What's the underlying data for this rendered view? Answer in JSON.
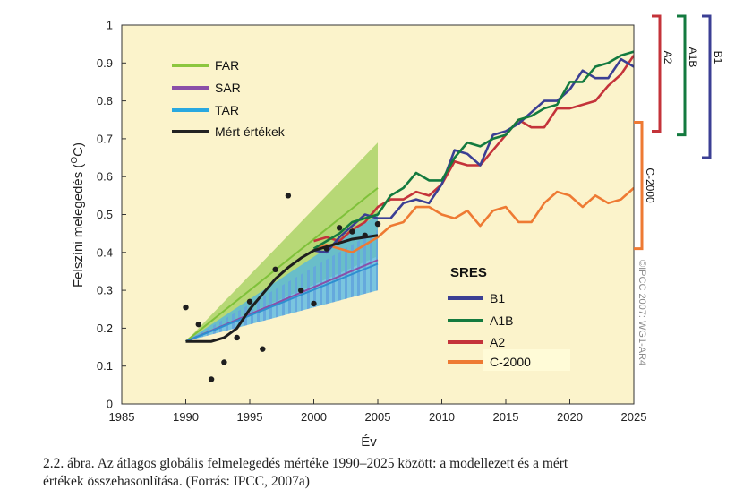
{
  "chart_data": {
    "type": "line",
    "ylabel": "Felszíni melegedés (°C)",
    "ylabel_main": "Felszíni melegedés (",
    "ylabel_unit_sup": "O",
    "ylabel_unit": "C)",
    "xlabel": "Év",
    "xlim": [
      1985,
      2025
    ],
    "ylim": [
      0,
      1
    ],
    "xticks": [
      1985,
      1990,
      1995,
      2000,
      2005,
      2010,
      2015,
      2020,
      2025
    ],
    "yticks": [
      0,
      0.1,
      0.2,
      0.3,
      0.4,
      0.5,
      0.6,
      0.7,
      0.8,
      0.9,
      1
    ],
    "ytick_labels": [
      "0",
      "0.1",
      "0.2",
      "0.3",
      "0.4",
      "0.5",
      "0.6",
      "0.7",
      "0.8",
      "0.9",
      "1"
    ],
    "assessment_legend": [
      {
        "label": "FAR",
        "color": "#8cc63f"
      },
      {
        "label": "SAR",
        "color": "#8a4fa8"
      },
      {
        "label": "TAR",
        "color": "#29a8e0"
      },
      {
        "label": "Mért értékek",
        "color": "#222222"
      }
    ],
    "sres_title": "SRES",
    "sres_legend": [
      {
        "label": "B1",
        "color": "#3b3f94"
      },
      {
        "label": "A1B",
        "color": "#137a3f"
      },
      {
        "label": "A2",
        "color": "#c4333a"
      },
      {
        "label": "C-2000",
        "color": "#ee7a33"
      }
    ],
    "assessment_ranges": [
      {
        "name": "FAR",
        "color": "#a6d160",
        "x": [
          1990,
          2005
        ],
        "low": [
          0.165,
          0.39
        ],
        "high": [
          0.165,
          0.69
        ],
        "central": [
          0.165,
          0.57
        ]
      },
      {
        "name": "SAR",
        "color": "#a47ec0",
        "x": [
          1990,
          2005
        ],
        "low": [
          0.165,
          0.3
        ],
        "high": [
          0.165,
          0.46
        ],
        "central": [
          0.165,
          0.38
        ]
      },
      {
        "name": "TAR",
        "color": "#4fb6e6",
        "x": [
          1990,
          2005
        ],
        "low": [
          0.165,
          0.3
        ],
        "high": [
          0.165,
          0.5
        ],
        "central": [
          0.165,
          0.37
        ]
      }
    ],
    "observed_smoothed": {
      "x": [
        1990,
        1992,
        1993,
        1994,
        1995,
        1996,
        1997,
        1998,
        1999,
        2000,
        2001,
        2002,
        2003,
        2004,
        2005
      ],
      "y": [
        0.165,
        0.165,
        0.175,
        0.2,
        0.25,
        0.29,
        0.33,
        0.36,
        0.385,
        0.405,
        0.415,
        0.425,
        0.435,
        0.44,
        0.445
      ]
    },
    "observed_points": {
      "x": [
        1990,
        1991,
        1992,
        1993,
        1994,
        1995,
        1996,
        1997,
        1998,
        1999,
        2000,
        2001,
        2002,
        2003,
        2004,
        2005
      ],
      "y": [
        0.255,
        0.21,
        0.065,
        0.11,
        0.175,
        0.27,
        0.145,
        0.355,
        0.55,
        0.3,
        0.265,
        0.41,
        0.465,
        0.455,
        0.445,
        0.475
      ]
    },
    "series": [
      {
        "name": "A2",
        "color": "#c4333a",
        "x": [
          2000,
          2001,
          2002,
          2003,
          2004,
          2005,
          2006,
          2007,
          2008,
          2009,
          2010,
          2011,
          2012,
          2013,
          2014,
          2015,
          2016,
          2017,
          2018,
          2019,
          2020,
          2021,
          2022,
          2023,
          2024,
          2025
        ],
        "values": [
          0.43,
          0.44,
          0.43,
          0.46,
          0.48,
          0.52,
          0.54,
          0.54,
          0.56,
          0.55,
          0.58,
          0.64,
          0.63,
          0.63,
          0.67,
          0.71,
          0.75,
          0.73,
          0.73,
          0.78,
          0.78,
          0.79,
          0.8,
          0.84,
          0.87,
          0.92
        ]
      },
      {
        "name": "B1",
        "color": "#3b3f94",
        "x": [
          2000,
          2001,
          2002,
          2003,
          2004,
          2005,
          2006,
          2007,
          2008,
          2009,
          2010,
          2011,
          2012,
          2013,
          2014,
          2015,
          2016,
          2017,
          2018,
          2019,
          2020,
          2021,
          2022,
          2023,
          2024,
          2025
        ],
        "values": [
          0.405,
          0.4,
          0.44,
          0.47,
          0.5,
          0.49,
          0.49,
          0.53,
          0.54,
          0.53,
          0.58,
          0.67,
          0.66,
          0.63,
          0.71,
          0.72,
          0.74,
          0.77,
          0.8,
          0.8,
          0.83,
          0.88,
          0.86,
          0.86,
          0.91,
          0.89
        ]
      },
      {
        "name": "A1B",
        "color": "#137a3f",
        "x": [
          2000,
          2001,
          2002,
          2003,
          2004,
          2005,
          2006,
          2007,
          2008,
          2009,
          2010,
          2011,
          2012,
          2013,
          2014,
          2015,
          2016,
          2017,
          2018,
          2019,
          2020,
          2021,
          2022,
          2023,
          2024,
          2025
        ],
        "values": [
          0.41,
          0.43,
          0.45,
          0.48,
          0.49,
          0.5,
          0.55,
          0.57,
          0.61,
          0.59,
          0.59,
          0.65,
          0.69,
          0.68,
          0.7,
          0.71,
          0.75,
          0.76,
          0.78,
          0.79,
          0.85,
          0.85,
          0.89,
          0.9,
          0.92,
          0.93
        ]
      },
      {
        "name": "C-2000",
        "color": "#ee7a33",
        "x": [
          2000,
          2001,
          2002,
          2003,
          2004,
          2005,
          2006,
          2007,
          2008,
          2009,
          2010,
          2011,
          2012,
          2013,
          2014,
          2015,
          2016,
          2017,
          2018,
          2019,
          2020,
          2021,
          2022,
          2023,
          2024,
          2025
        ],
        "values": [
          0.41,
          0.42,
          0.41,
          0.4,
          0.42,
          0.44,
          0.47,
          0.48,
          0.52,
          0.52,
          0.5,
          0.49,
          0.51,
          0.47,
          0.51,
          0.52,
          0.48,
          0.48,
          0.53,
          0.56,
          0.55,
          0.52,
          0.55,
          0.53,
          0.54,
          0.57
        ]
      }
    ],
    "range_brackets": [
      {
        "label": "A2",
        "color": "#c4333a",
        "range": [
          0.72,
          1.0
        ]
      },
      {
        "label": "A1B",
        "color": "#137a3f",
        "range": [
          0.71,
          1.0
        ]
      },
      {
        "label": "B1",
        "color": "#3b3f94",
        "range": [
          0.65,
          1.0
        ]
      },
      {
        "label": "C-2000",
        "color": "#ee7a33",
        "range": [
          0.41,
          0.72
        ]
      }
    ],
    "credit": "©IPCC 2007: WG1-AR4"
  },
  "caption": {
    "line1": "2.2. ábra. Az átlagos globális felmelegedés mértéke 1990–2025 között: a modellezett és a mért",
    "line2": "értékek összehasonlítása. (Forrás: IPCC, 2007a)"
  }
}
